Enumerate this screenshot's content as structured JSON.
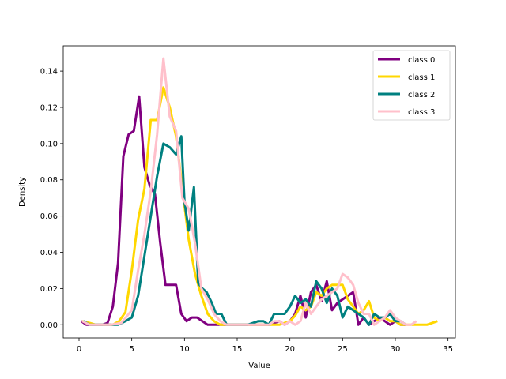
{
  "chart_data": {
    "type": "line",
    "title": "",
    "xlabel": "Value",
    "ylabel": "Density",
    "xlim": [
      -1.5,
      35.7
    ],
    "ylim": [
      -0.0073,
      0.154
    ],
    "xticks": [
      "0",
      "5",
      "10",
      "15",
      "20",
      "25",
      "30",
      "35"
    ],
    "yticks": [
      "0.00",
      "0.02",
      "0.04",
      "0.06",
      "0.08",
      "0.10",
      "0.12",
      "0.14"
    ],
    "legend_position": "upper right",
    "grid": false,
    "series": [
      {
        "name": "class 0",
        "color": "#800080",
        "x": [
          0.2,
          0.7,
          1.2,
          1.7,
          2.2,
          2.7,
          3.2,
          3.7,
          4.2,
          4.7,
          5.2,
          5.7,
          6.2,
          6.7,
          7.2,
          7.7,
          8.2,
          8.7,
          9.2,
          9.7,
          10.2,
          10.7,
          11.2,
          11.7,
          12.2,
          12.7,
          13.2,
          13.7,
          14.2,
          15,
          16,
          17,
          18,
          19,
          19.5,
          20,
          20.5,
          21,
          21.5,
          22,
          22.5,
          23,
          23.5,
          24,
          24.5,
          25,
          25.5,
          26,
          26.5,
          27,
          27.5,
          28,
          28.5,
          29,
          29.5,
          30,
          30.5,
          31
        ],
        "values": [
          0.002,
          0.0,
          0.0,
          0.0,
          0.0,
          0.001,
          0.01,
          0.034,
          0.093,
          0.105,
          0.107,
          0.126,
          0.087,
          0.077,
          0.072,
          0.045,
          0.022,
          0.022,
          0.022,
          0.006,
          0.002,
          0.004,
          0.004,
          0.002,
          0.0,
          0.0,
          0.0,
          0.0,
          0.0,
          0.0,
          0.0,
          0.0,
          0.0,
          0.002,
          0.0,
          0.002,
          0.006,
          0.016,
          0.004,
          0.018,
          0.022,
          0.013,
          0.024,
          0.008,
          0.012,
          0.014,
          0.016,
          0.018,
          0.0,
          0.004,
          0.0,
          0.002,
          0.004,
          0.002,
          0.0,
          0.002,
          0.0,
          0.0
        ]
      },
      {
        "name": "class 1",
        "color": "#ffd700",
        "x": [
          0.3,
          1.0,
          1.6,
          2.4,
          3.2,
          3.8,
          4.4,
          5.0,
          5.6,
          6.2,
          6.8,
          7.4,
          8.0,
          8.6,
          9.2,
          9.8,
          10.4,
          11.0,
          11.6,
          12.2,
          12.8,
          13.4,
          14.0,
          15,
          16,
          17,
          18,
          19,
          20,
          20.5,
          21,
          21.5,
          22,
          22.5,
          23,
          23.5,
          24,
          24.5,
          25,
          25.5,
          26,
          26.5,
          27,
          27.5,
          28,
          28.5,
          29,
          29.5,
          30,
          30.5,
          31,
          32,
          33,
          34
        ],
        "values": [
          0.002,
          0.001,
          0.0,
          0.0,
          0.0,
          0.002,
          0.007,
          0.03,
          0.058,
          0.075,
          0.113,
          0.113,
          0.131,
          0.12,
          0.104,
          0.075,
          0.047,
          0.028,
          0.016,
          0.006,
          0.002,
          0.0,
          0.0,
          0.0,
          0.0,
          0.0,
          0.0,
          0.0,
          0.002,
          0.005,
          0.01,
          0.008,
          0.01,
          0.018,
          0.016,
          0.02,
          0.022,
          0.022,
          0.022,
          0.014,
          0.01,
          0.006,
          0.008,
          0.013,
          0.004,
          0.002,
          0.004,
          0.002,
          0.002,
          0.0,
          0.0,
          0.0,
          0.0,
          0.002
        ]
      },
      {
        "name": "class 2",
        "color": "#008080",
        "x": [
          0.4,
          1.0,
          2.0,
          3.0,
          3.7,
          4.4,
          5.0,
          5.6,
          6.2,
          6.8,
          7.4,
          8.0,
          8.6,
          9.2,
          9.7,
          10.0,
          10.4,
          10.9,
          11.3,
          11.7,
          12.1,
          12.6,
          13.0,
          13.5,
          14.0,
          14.5,
          15,
          16,
          17,
          17.5,
          18,
          18.5,
          19,
          19.5,
          20,
          20.5,
          21,
          21.5,
          22,
          22.5,
          23,
          23.5,
          24,
          24.5,
          25,
          25.5,
          26,
          26.5,
          27,
          27.5,
          28,
          28.5,
          29,
          29.5,
          30,
          30.5,
          31
        ],
        "values": [
          0.002,
          0.0,
          0.0,
          0.0,
          0.0,
          0.002,
          0.004,
          0.016,
          0.038,
          0.06,
          0.082,
          0.1,
          0.098,
          0.094,
          0.104,
          0.068,
          0.052,
          0.076,
          0.023,
          0.02,
          0.018,
          0.012,
          0.006,
          0.006,
          0.0,
          0.0,
          0.0,
          0.0,
          0.002,
          0.002,
          0.0,
          0.006,
          0.006,
          0.006,
          0.01,
          0.016,
          0.012,
          0.014,
          0.01,
          0.024,
          0.02,
          0.012,
          0.02,
          0.016,
          0.004,
          0.01,
          0.008,
          0.006,
          0.004,
          0.0,
          0.006,
          0.004,
          0.004,
          0.006,
          0.002,
          0.002,
          0.0
        ]
      },
      {
        "name": "class 3",
        "color": "#ffc0cb",
        "x": [
          0.3,
          1.0,
          2.0,
          3.0,
          4.0,
          5.0,
          5.6,
          6.2,
          6.8,
          7.4,
          8.0,
          8.6,
          9.2,
          9.8,
          10.4,
          11.0,
          11.6,
          12.2,
          12.8,
          13.4,
          14.0,
          15,
          16,
          17,
          18,
          18.5,
          19,
          19.5,
          20,
          20.5,
          21,
          21.5,
          22,
          22.5,
          23,
          23.5,
          24,
          24.5,
          25,
          25.5,
          26,
          26.5,
          27,
          27.5,
          28,
          28.5,
          29,
          29.5,
          30,
          30.5,
          31,
          31.5,
          32
        ],
        "values": [
          0.002,
          0.0,
          0.0,
          0.0,
          0.001,
          0.008,
          0.03,
          0.05,
          0.074,
          0.105,
          0.147,
          0.115,
          0.107,
          0.07,
          0.064,
          0.045,
          0.02,
          0.014,
          0.006,
          0.002,
          0.0,
          0.0,
          0.0,
          0.0,
          0.0,
          0.002,
          0.002,
          0.0,
          0.002,
          0.0,
          0.002,
          0.012,
          0.006,
          0.01,
          0.014,
          0.016,
          0.018,
          0.02,
          0.028,
          0.026,
          0.022,
          0.012,
          0.006,
          0.006,
          0.0,
          0.002,
          0.004,
          0.008,
          0.004,
          0.002,
          0.0,
          0.0,
          0.002
        ]
      }
    ]
  }
}
